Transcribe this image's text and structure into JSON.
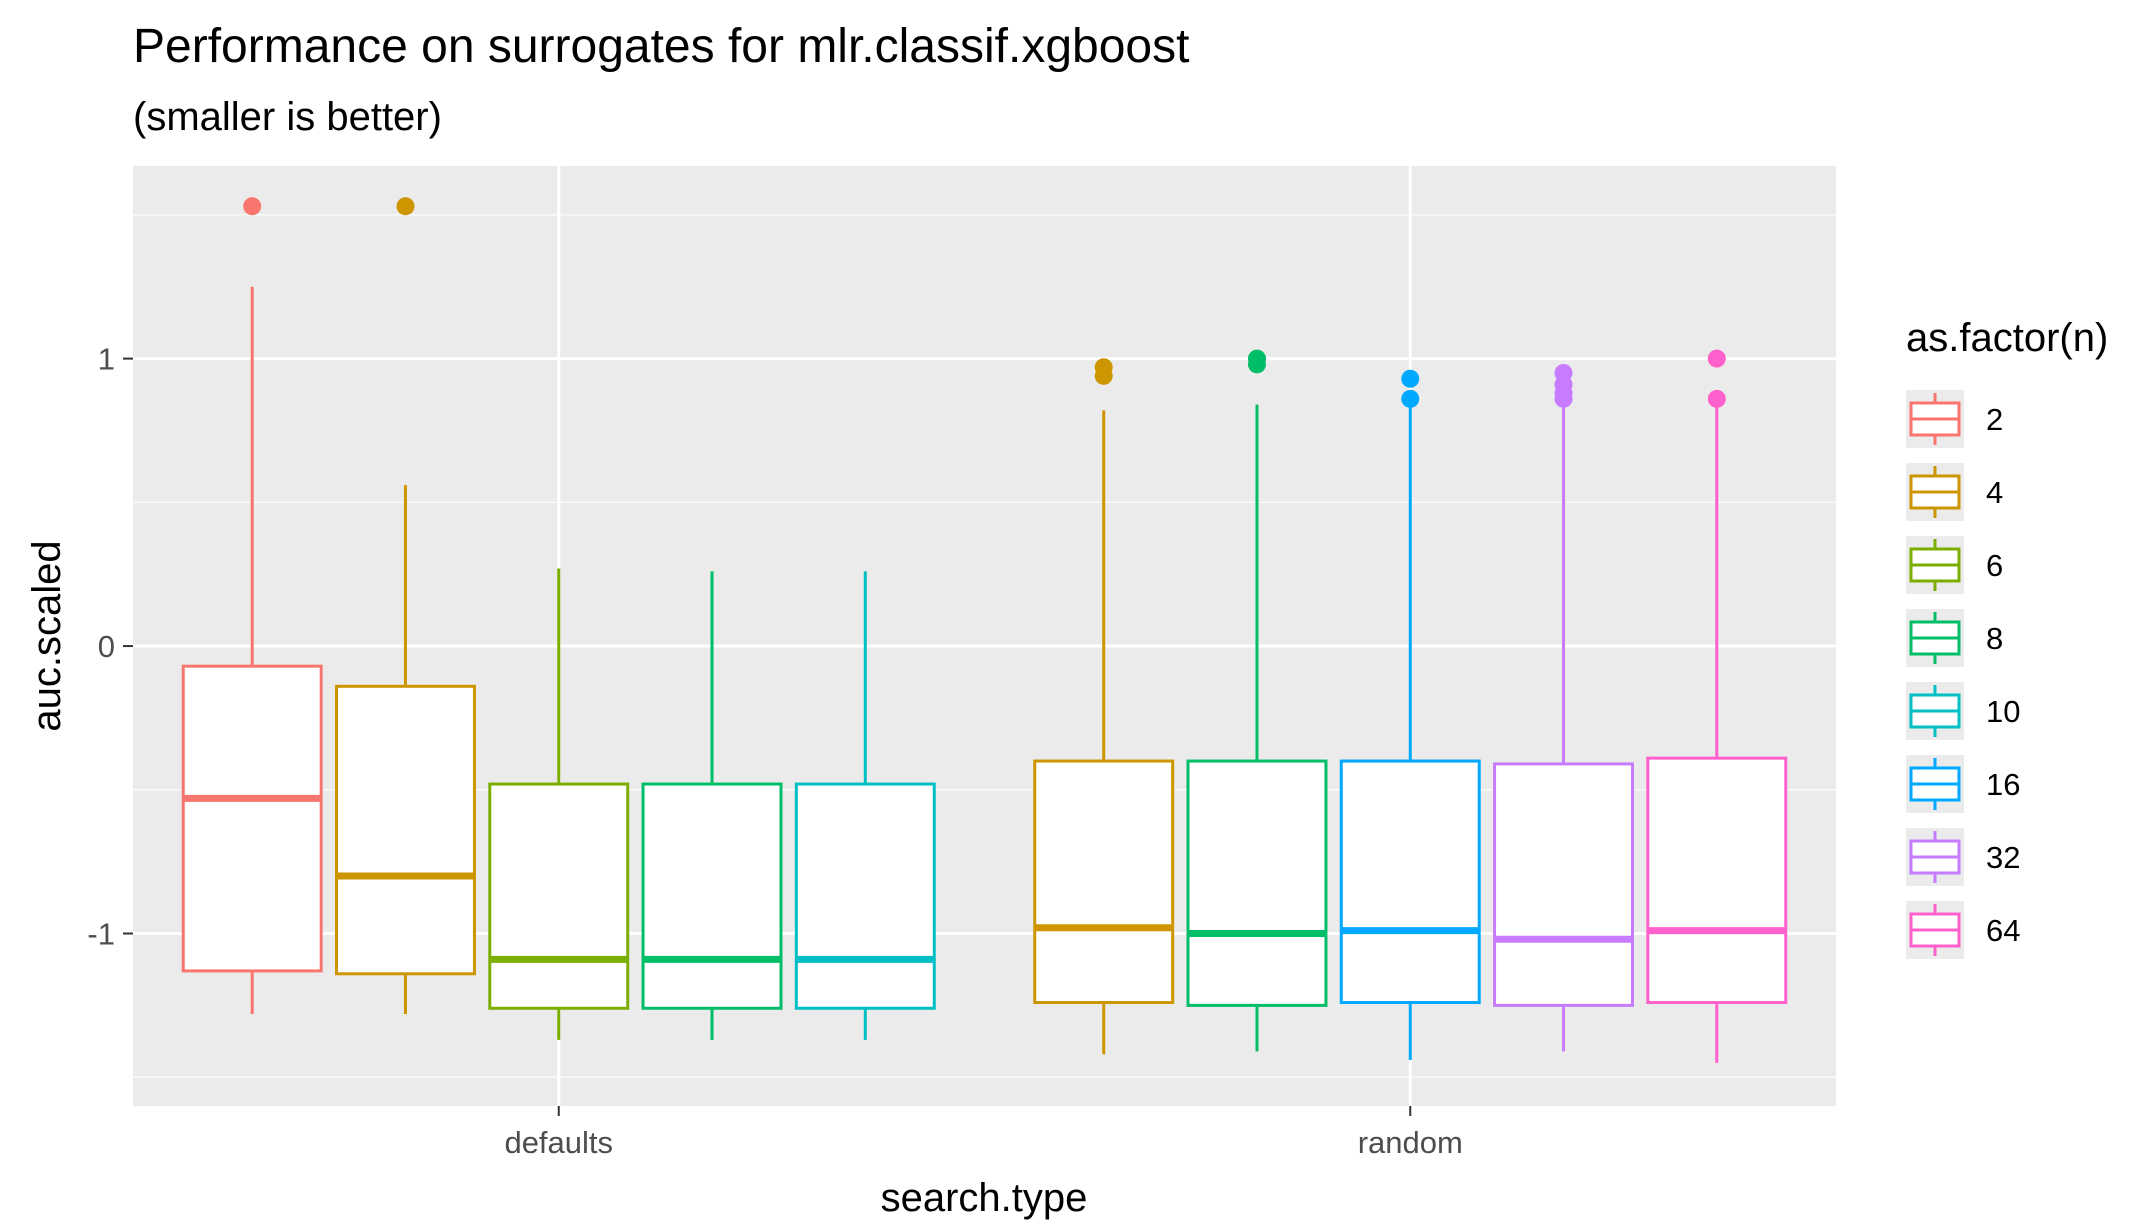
{
  "chart_data": {
    "type": "box",
    "title": "Performance on surrogates for mlr.classif.xgboost",
    "subtitle": "(smaller is better)",
    "xlabel": "search.type",
    "ylabel": "auc.scaled",
    "ylim": [
      -1.6,
      1.67
    ],
    "yticks": [
      -1,
      0,
      1
    ],
    "ytick_labels": [
      "-1",
      "0",
      "1"
    ],
    "grid": true,
    "legend": {
      "title": "as.factor(n)",
      "position": "right"
    },
    "categories": [
      "defaults",
      "random"
    ],
    "series": [
      {
        "name": "2",
        "color": "#F8766D",
        "boxes": [
          {
            "category": "defaults",
            "whisker_low": -1.28,
            "q1": -1.13,
            "median": -0.53,
            "q3": -0.07,
            "whisker_high": 1.25,
            "outliers": [
              1.53
            ]
          },
          null
        ]
      },
      {
        "name": "4",
        "color": "#CD9600",
        "boxes": [
          {
            "category": "defaults",
            "whisker_low": -1.28,
            "q1": -1.14,
            "median": -0.8,
            "q3": -0.14,
            "whisker_high": 0.56,
            "outliers": [
              1.53
            ]
          },
          {
            "category": "random",
            "whisker_low": -1.42,
            "q1": -1.24,
            "median": -0.98,
            "q3": -0.4,
            "whisker_high": 0.82,
            "outliers": [
              0.94,
              0.97
            ]
          }
        ]
      },
      {
        "name": "6",
        "color": "#7CAE00",
        "boxes": [
          {
            "category": "defaults",
            "whisker_low": -1.37,
            "q1": -1.26,
            "median": -1.09,
            "q3": -0.48,
            "whisker_high": 0.27,
            "outliers": []
          },
          null
        ]
      },
      {
        "name": "8",
        "color": "#00BE67",
        "boxes": [
          {
            "category": "defaults",
            "whisker_low": -1.37,
            "q1": -1.26,
            "median": -1.09,
            "q3": -0.48,
            "whisker_high": 0.26,
            "outliers": []
          },
          {
            "category": "random",
            "whisker_low": -1.41,
            "q1": -1.25,
            "median": -1.0,
            "q3": -0.4,
            "whisker_high": 0.84,
            "outliers": [
              0.98,
              1.0
            ]
          }
        ]
      },
      {
        "name": "10",
        "color": "#00BFC4",
        "boxes": [
          {
            "category": "defaults",
            "whisker_low": -1.37,
            "q1": -1.26,
            "median": -1.09,
            "q3": -0.48,
            "whisker_high": 0.26,
            "outliers": []
          },
          null
        ]
      },
      {
        "name": "16",
        "color": "#00A9FF",
        "boxes": [
          null,
          {
            "category": "random",
            "whisker_low": -1.44,
            "q1": -1.24,
            "median": -0.99,
            "q3": -0.4,
            "whisker_high": 0.86,
            "outliers": [
              0.86,
              0.93
            ]
          }
        ]
      },
      {
        "name": "32",
        "color": "#C77CFF",
        "boxes": [
          null,
          {
            "category": "random",
            "whisker_low": -1.41,
            "q1": -1.25,
            "median": -1.02,
            "q3": -0.41,
            "whisker_high": 0.85,
            "outliers": [
              0.86,
              0.88,
              0.91,
              0.95
            ]
          }
        ]
      },
      {
        "name": "64",
        "color": "#FF61CC",
        "boxes": [
          null,
          {
            "category": "random",
            "whisker_low": -1.45,
            "q1": -1.24,
            "median": -0.99,
            "q3": -0.39,
            "whisker_high": 0.86,
            "outliers": [
              0.86,
              1.0
            ]
          }
        ]
      }
    ]
  },
  "colors": {
    "panel_background": "#EBEBEB",
    "grid_major": "#FFFFFF",
    "grid_minor": "#F5F5F5",
    "tick_text": "#4D4D4D"
  }
}
